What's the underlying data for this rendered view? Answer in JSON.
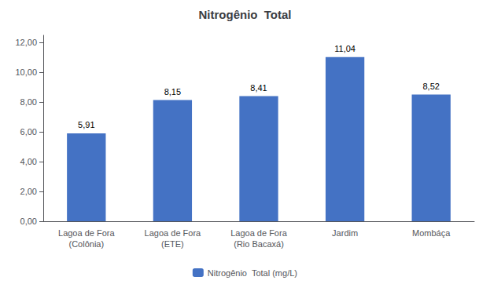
{
  "chart_data": {
    "type": "bar",
    "title": "Nitrogênio  Total",
    "categories": [
      "Lagoa de Fora\n(Colônia)",
      "Lagoa de Fora\n(ETE)",
      "Lagoa de Fora\n(Rio Bacaxá)",
      "Jardim",
      "Mombáça"
    ],
    "series": [
      {
        "name": "Nitrogênio  Total (mg/L)",
        "color": "#4472C4",
        "values": [
          5.91,
          8.15,
          8.41,
          11.04,
          8.52
        ],
        "value_labels": [
          "5,91",
          "8,15",
          "8,41",
          "11,04",
          "8,52"
        ]
      }
    ],
    "ylim": [
      0,
      12.5
    ],
    "yticks": [
      {
        "value": 0.0,
        "label": "0,00"
      },
      {
        "value": 2.0,
        "label": "2,00"
      },
      {
        "value": 4.0,
        "label": "4,00"
      },
      {
        "value": 6.0,
        "label": "6,00"
      },
      {
        "value": 8.0,
        "label": "8,00"
      },
      {
        "value": 10.0,
        "label": "10,00"
      },
      {
        "value": 12.0,
        "label": "12,00"
      }
    ],
    "data_labels": true,
    "grid": false,
    "legend": "bottom"
  }
}
